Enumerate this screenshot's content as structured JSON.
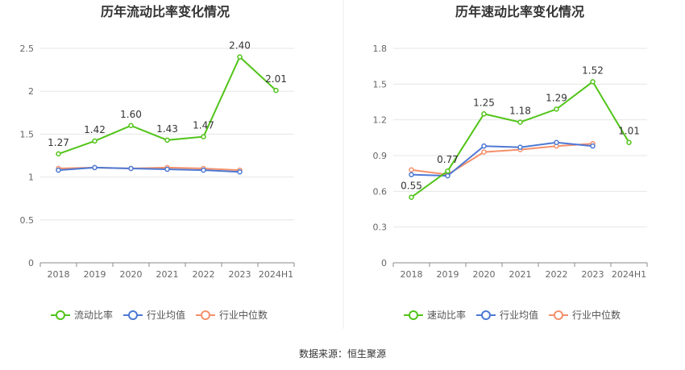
{
  "footer": {
    "source": "数据来源：恒生聚源"
  },
  "colors": {
    "main": "#52c41a",
    "industry_avg": "#4e79d4",
    "industry_median": "#f4906b"
  },
  "chart_data": [
    {
      "type": "line",
      "title": "历年流动比率变化情况",
      "categories": [
        "2018",
        "2019",
        "2020",
        "2021",
        "2022",
        "2023",
        "2024H1"
      ],
      "ylim": [
        0,
        2.5
      ],
      "yticks": [
        "0",
        "0.5",
        "1",
        "1.5",
        "2",
        "2.5"
      ],
      "legend_position": "bottom",
      "grid": true,
      "series": [
        {
          "name": "流动比率",
          "values": [
            1.27,
            1.42,
            1.6,
            1.43,
            1.47,
            2.4,
            2.01
          ],
          "labels": [
            "1.27",
            "1.42",
            "1.60",
            "1.43",
            "1.47",
            "2.40",
            "2.01"
          ]
        },
        {
          "name": "行业均值",
          "values": [
            1.08,
            1.11,
            1.1,
            1.09,
            1.08,
            1.06,
            null
          ]
        },
        {
          "name": "行业中位数",
          "values": [
            1.1,
            1.11,
            1.1,
            1.11,
            1.1,
            1.08,
            null
          ]
        }
      ]
    },
    {
      "type": "line",
      "title": "历年速动比率变化情况",
      "categories": [
        "2018",
        "2019",
        "2020",
        "2021",
        "2022",
        "2023",
        "2024H1"
      ],
      "ylim": [
        0,
        1.8
      ],
      "yticks": [
        "0",
        "0.3",
        "0.6",
        "0.9",
        "1.2",
        "1.5",
        "1.8"
      ],
      "legend_position": "bottom",
      "grid": true,
      "series": [
        {
          "name": "速动比率",
          "values": [
            0.55,
            0.77,
            1.25,
            1.18,
            1.29,
            1.52,
            1.01
          ],
          "labels": [
            "0.55",
            "0.77",
            "1.25",
            "1.18",
            "1.29",
            "1.52",
            "1.01"
          ]
        },
        {
          "name": "行业均值",
          "values": [
            0.74,
            0.73,
            0.98,
            0.97,
            1.01,
            0.98,
            null
          ]
        },
        {
          "name": "行业中位数",
          "values": [
            0.78,
            0.74,
            0.93,
            0.95,
            0.98,
            1.0,
            null
          ]
        }
      ]
    }
  ]
}
